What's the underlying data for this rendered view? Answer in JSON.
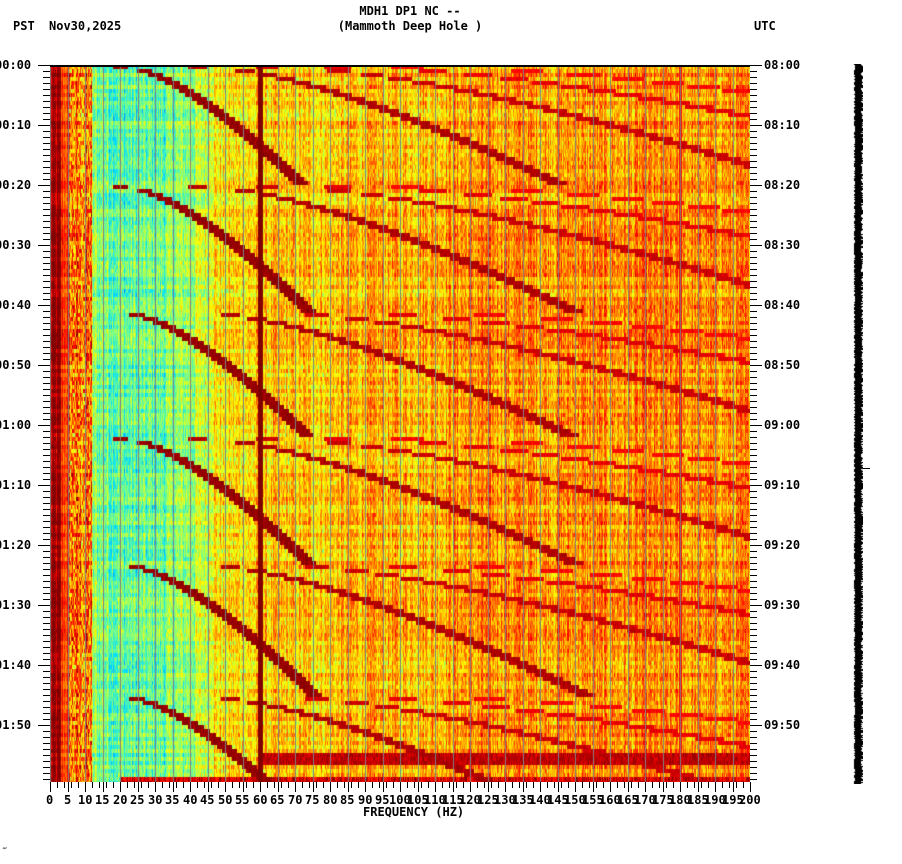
{
  "header": {
    "station_line": "MDH1 DP1 NC --",
    "station_name": "(Mammoth Deep Hole )",
    "left_tz": "PST",
    "date": "Nov30,2025",
    "right_tz": "UTC"
  },
  "footer": {
    "corner_mark": "‴"
  },
  "chart_data": {
    "type": "heatmap",
    "title": "MDH1 DP1 NC -- (Mammoth Deep Hole ) spectrogram",
    "xlabel": "FREQUENCY (HZ)",
    "ylabel_left": "PST",
    "ylabel_right": "UTC",
    "x_range": [
      0,
      200
    ],
    "x_ticks": [
      0,
      5,
      10,
      15,
      20,
      25,
      30,
      35,
      40,
      45,
      50,
      55,
      60,
      65,
      70,
      75,
      80,
      85,
      90,
      95,
      100,
      105,
      110,
      115,
      120,
      125,
      130,
      135,
      140,
      145,
      150,
      155,
      160,
      165,
      170,
      175,
      180,
      185,
      190,
      195,
      200
    ],
    "y_ticks_left": [
      "00:00",
      "00:10",
      "00:20",
      "00:30",
      "00:40",
      "00:50",
      "01:00",
      "01:10",
      "01:20",
      "01:30",
      "01:40",
      "01:50"
    ],
    "y_ticks_right": [
      "08:00",
      "08:10",
      "08:20",
      "08:30",
      "08:40",
      "08:50",
      "09:00",
      "09:10",
      "09:20",
      "09:30",
      "09:40",
      "09:50"
    ],
    "y_range_minutes": [
      0,
      120
    ],
    "grid": {
      "vertical_every_hz": 5,
      "color": "#808080"
    },
    "colormap": [
      "#00007f",
      "#0060ff",
      "#00e0ff",
      "#80ff80",
      "#ffff00",
      "#ff8000",
      "#ff0000",
      "#800000"
    ],
    "features": {
      "low_freq_band_hz": [
        0,
        5
      ],
      "persistent_line_hz": 60,
      "persistent_line_weak_hz": 180,
      "sweep_start_minutes": [
        0,
        20,
        41,
        62,
        83,
        105
      ],
      "sweep_cycle_minutes": 21.5,
      "sweep_harmonics_start_hz": [
        20,
        42,
        62,
        82,
        102
      ],
      "broadband_burst_minutes": [
        115,
        119
      ],
      "quiet_region_hz": [
        15,
        45
      ]
    }
  }
}
